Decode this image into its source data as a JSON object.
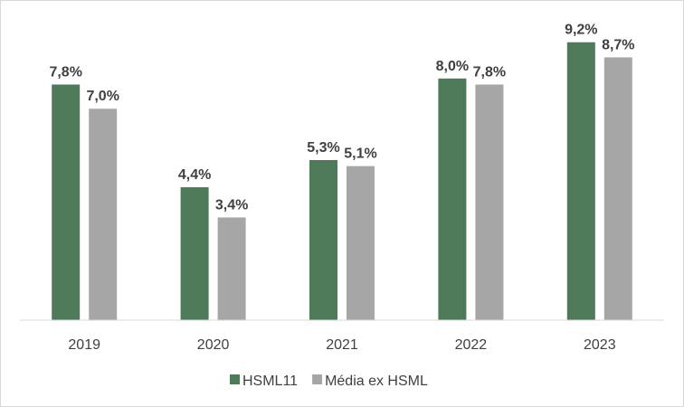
{
  "chart_data": {
    "type": "bar",
    "categories": [
      "2019",
      "2020",
      "2021",
      "2022",
      "2023"
    ],
    "series": [
      {
        "name": "HSML11",
        "values": [
          7.8,
          4.4,
          5.3,
          8.0,
          9.2
        ],
        "labels": [
          "7,8%",
          "4,4%",
          "5,3%",
          "8,0%",
          "9,2%"
        ],
        "color": "#4e7a5a"
      },
      {
        "name": "Média ex HSML",
        "values": [
          7.0,
          3.4,
          5.1,
          7.8,
          8.7
        ],
        "labels": [
          "7,0%",
          "3,4%",
          "5,1%",
          "7,8%",
          "8,7%"
        ],
        "color": "#a6a6a6"
      }
    ],
    "title": "",
    "xlabel": "",
    "ylabel": "",
    "ylim": [
      0,
      10
    ],
    "grid": false,
    "legend": "bottom",
    "axis_color": "#d9d9d9",
    "label_color": "#404040"
  }
}
